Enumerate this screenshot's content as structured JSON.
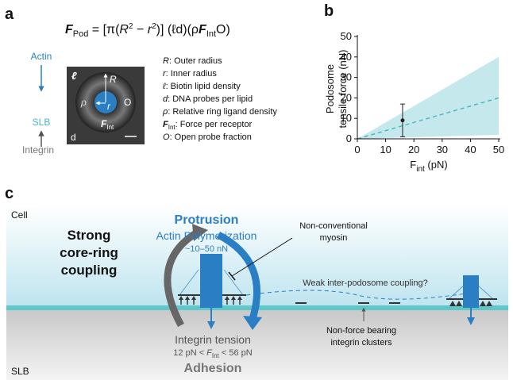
{
  "panel_labels": [
    "a",
    "b",
    "c"
  ],
  "panel_a": {
    "formula": [
      "F",
      "Pod",
      " = [π(",
      "R",
      "2",
      " − ",
      "r",
      "2",
      ")] (ℓd)(ρ",
      "F",
      "Int",
      "O)"
    ],
    "pathway": [
      "Actin",
      "SLB",
      "Integrin"
    ],
    "image_labels": {
      "l": "ℓ",
      "R": "R",
      "r": "r",
      "rho": "ρ",
      "O": "O",
      "F": "F",
      "Int": "Int",
      "d": "d"
    },
    "legend": [
      {
        "symbol": "R",
        "text": ": Outer radius"
      },
      {
        "symbol": "r",
        "text": ": Inner radius"
      },
      {
        "symbol": "ℓ",
        "text": ": Biotin lipid density"
      },
      {
        "symbol": "d",
        "text": ": DNA probes per lipid"
      },
      {
        "symbol": "ρ",
        "text": ": Relative ring ligand density"
      },
      {
        "symbol": "F",
        "sub": "Int",
        "text": ": Force per receptor"
      },
      {
        "symbol": "O",
        "text": ": Open probe fraction"
      }
    ]
  },
  "chart_data": {
    "type": "scatter",
    "x_label": [
      "F",
      "int",
      " (pN)"
    ],
    "y_label": [
      "Podosome",
      "tensile force (nN)"
    ],
    "xlim": [
      0,
      50
    ],
    "ylim": [
      0,
      50
    ],
    "xticks": [
      0,
      10,
      20,
      30,
      40,
      50
    ],
    "yticks": [
      0,
      10,
      20,
      30,
      40,
      50
    ],
    "x": [
      16
    ],
    "values": [
      9
    ],
    "error": [
      8
    ],
    "color": "#222222",
    "line": {
      "x": [
        0,
        50
      ],
      "values": [
        0,
        20
      ],
      "color": "#4bb8c4"
    },
    "band": {
      "x": [
        0,
        50
      ],
      "upper": [
        0,
        40
      ],
      "lower": [
        0,
        2
      ],
      "color": "#c4e8ec"
    }
  },
  "panel_c": {
    "regions": [
      "Cell",
      "SLB"
    ],
    "coupling": [
      "Strong",
      "core-ring",
      "coupling"
    ],
    "protrusion": {
      "title": "Protrusion",
      "subtitle": "Actin Polymerization",
      "force": "~10–50 nN"
    },
    "myosin": [
      "Non-conventional",
      "myosin"
    ],
    "weak": "Weak inter-podosome coupling?",
    "clusters": [
      "Non-force bearing",
      "integrin clusters"
    ],
    "adhesion": {
      "tension": "Integrin tension",
      "range": [
        "12 pN < ",
        "F",
        "Int",
        " < 56 pN"
      ],
      "title": "Adhesion"
    }
  }
}
